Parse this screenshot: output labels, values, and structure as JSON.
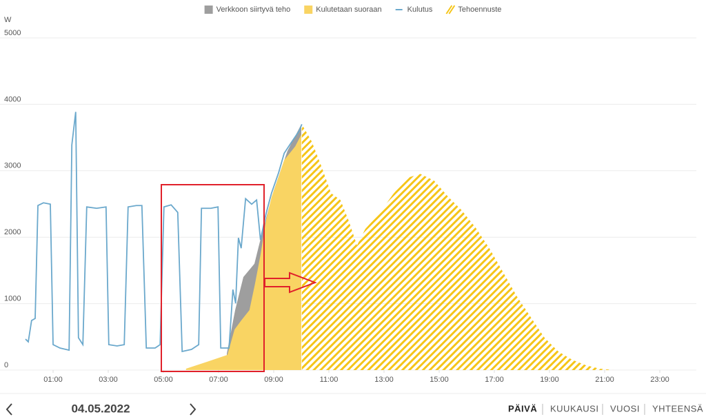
{
  "chart_data": {
    "type": "area",
    "y_label": "W",
    "xlim": [
      0,
      24
    ],
    "ylim": [
      0,
      5000
    ],
    "xticks": [
      {
        "value": 1,
        "label": "01:00"
      },
      {
        "value": 3,
        "label": "03:00"
      },
      {
        "value": 5,
        "label": "05:00"
      },
      {
        "value": 7,
        "label": "07:00"
      },
      {
        "value": 9,
        "label": "09:00"
      },
      {
        "value": 11,
        "label": "11:00"
      },
      {
        "value": 13,
        "label": "13:00"
      },
      {
        "value": 15,
        "label": "15:00"
      },
      {
        "value": 17,
        "label": "17:00"
      },
      {
        "value": 19,
        "label": "19:00"
      },
      {
        "value": 21,
        "label": "21:00"
      },
      {
        "value": 23,
        "label": "23:00"
      }
    ],
    "yticks": [
      0,
      1000,
      2000,
      3000,
      4000,
      5000
    ],
    "grid": true,
    "legend": "top",
    "series": [
      {
        "name": "Verkkoon siirtyvä teho",
        "type": "area",
        "color": "#9e9e9e",
        "x": [
          7.3,
          7.6,
          7.9,
          8.3,
          8.6,
          9.0,
          9.5,
          10.0
        ],
        "values": [
          250,
          900,
          1400,
          1600,
          2100,
          2700,
          3300,
          3700
        ]
      },
      {
        "name": "Kulutetaan suoraan",
        "type": "area",
        "color": "#f9d463",
        "x": [
          5.82,
          6.58,
          7.32,
          7.58,
          7.82,
          8.12,
          8.32,
          8.52,
          8.72,
          8.92,
          9.18,
          9.38,
          9.58,
          9.78,
          10.0
        ],
        "values": [
          21,
          124,
          228,
          611,
          746,
          902,
          1295,
          1731,
          2249,
          2601,
          2912,
          3161,
          3264,
          3368,
          3544
        ]
      },
      {
        "name": "Kulutus",
        "type": "line",
        "color": "#6aa8cc",
        "x": [
          0.0,
          0.1,
          0.22,
          0.35,
          0.45,
          0.65,
          0.9,
          1.0,
          1.25,
          1.58,
          1.68,
          1.82,
          1.92,
          2.08,
          2.22,
          2.58,
          2.92,
          3.02,
          3.32,
          3.58,
          3.72,
          4.02,
          4.22,
          4.38,
          4.7,
          4.88,
          5.02,
          5.28,
          5.52,
          5.68,
          6.02,
          6.28,
          6.38,
          6.72,
          6.98,
          7.08,
          7.38,
          7.52,
          7.62,
          7.72,
          7.82,
          7.98,
          8.2,
          8.38,
          8.52,
          8.72,
          8.92,
          9.18,
          9.38,
          9.58,
          9.78,
          9.92,
          10.02
        ],
        "values": [
          466,
          425,
          746,
          777,
          2477,
          2518,
          2497,
          383,
          332,
          300,
          3389,
          3886,
          487,
          383,
          2456,
          2435,
          2456,
          383,
          363,
          383,
          2456,
          2477,
          2477,
          332,
          332,
          383,
          2456,
          2487,
          2373,
          280,
          311,
          383,
          2435,
          2435,
          2456,
          332,
          332,
          1212,
          1005,
          1990,
          1834,
          2580,
          2497,
          2560,
          1959,
          2352,
          2663,
          2974,
          3264,
          3389,
          3513,
          3596,
          3700
        ]
      },
      {
        "name": "Tehoennuste",
        "type": "hatched",
        "color": "#f5c518",
        "x": [
          10.02,
          10.38,
          10.72,
          11.08,
          11.42,
          11.72,
          12.02,
          12.32,
          12.82,
          13.32,
          13.82,
          14.32,
          14.82,
          15.32,
          15.82,
          16.32,
          16.82,
          17.32,
          17.82,
          18.32,
          18.82,
          19.32,
          19.82,
          20.32,
          20.82,
          21.32
        ],
        "values": [
          3700,
          3440,
          3078,
          2663,
          2560,
          2249,
          1876,
          2124,
          2352,
          2642,
          2891,
          2953,
          2850,
          2611,
          2404,
          2145,
          1834,
          1472,
          1109,
          798,
          487,
          280,
          155,
          73,
          21,
          0
        ]
      }
    ]
  },
  "ui": {
    "date": "04.05.2022",
    "tabs": [
      "PÄIVÄ",
      "KUUKAUSI",
      "VUOSI",
      "YHTEENSÄ"
    ]
  }
}
